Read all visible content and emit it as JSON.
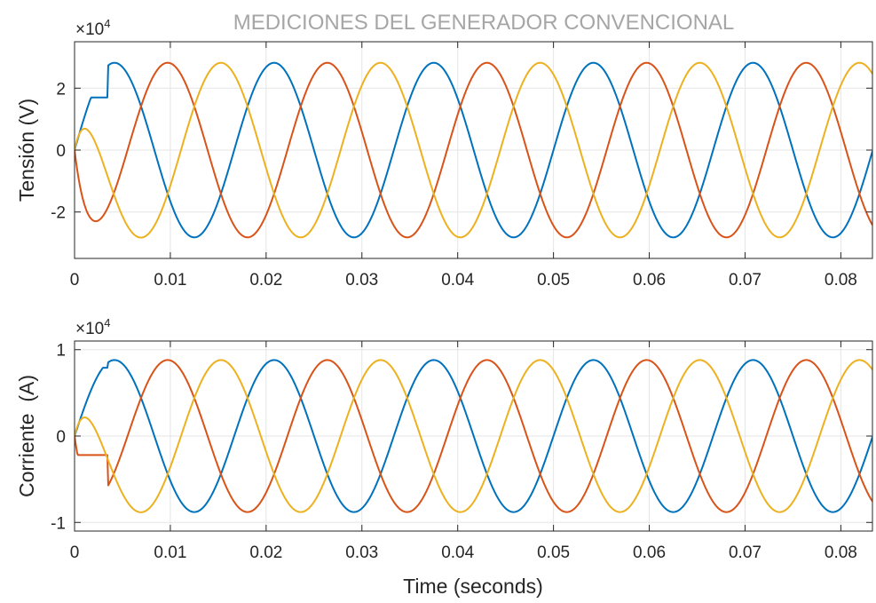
{
  "colors": {
    "series_1": "#0072BD",
    "series_2": "#D95319",
    "series_3": "#EDB120",
    "grid": "#e6e6e6",
    "axes": "#262626",
    "title": "#a6a6a6"
  },
  "chart_data": [
    {
      "type": "line",
      "title": "MEDICIONES DEL GENERADOR CONVENCIONAL",
      "xlabel": "",
      "ylabel": "Tensión (V)",
      "exponent_label": "×10",
      "exponent_power": "4",
      "xlim": [
        0,
        0.0833
      ],
      "ylim": [
        -35000,
        35000
      ],
      "xticks": [
        0,
        0.01,
        0.02,
        0.03,
        0.04,
        0.05,
        0.06,
        0.07,
        0.08
      ],
      "xtick_labels": [
        "0",
        "0.01",
        "0.02",
        "0.03",
        "0.04",
        "0.05",
        "0.06",
        "0.07",
        "0.08"
      ],
      "yticks": [
        -20000,
        0,
        20000
      ],
      "ytick_labels": [
        "-2",
        "0",
        "2"
      ],
      "grid": true,
      "frequency_hz": 60,
      "series": [
        {
          "amplitude": 28200,
          "phase_deg": 0,
          "startup_peak": 17000
        },
        {
          "amplitude": 28200,
          "phase_deg": -120
        },
        {
          "amplitude": 28200,
          "phase_deg": 120,
          "startup_trough": -28000
        }
      ]
    },
    {
      "type": "line",
      "title": "",
      "xlabel": "Time (seconds)",
      "ylabel": "Corriente  (A)",
      "exponent_label": "×10",
      "exponent_power": "4",
      "xlim": [
        0,
        0.0833
      ],
      "ylim": [
        -11000,
        11000
      ],
      "xticks": [
        0,
        0.01,
        0.02,
        0.03,
        0.04,
        0.05,
        0.06,
        0.07,
        0.08
      ],
      "xtick_labels": [
        "0",
        "0.01",
        "0.02",
        "0.03",
        "0.04",
        "0.05",
        "0.06",
        "0.07",
        "0.08"
      ],
      "yticks": [
        -10000,
        0,
        10000
      ],
      "ytick_labels": [
        "-1",
        "0",
        "1"
      ],
      "grid": true,
      "frequency_hz": 60,
      "series": [
        {
          "amplitude": 8800,
          "phase_deg": 0,
          "startup_peak": 7900
        },
        {
          "amplitude": 8800,
          "phase_deg": -120,
          "startup_trough": -2200
        },
        {
          "amplitude": 8800,
          "phase_deg": 120
        }
      ]
    }
  ]
}
